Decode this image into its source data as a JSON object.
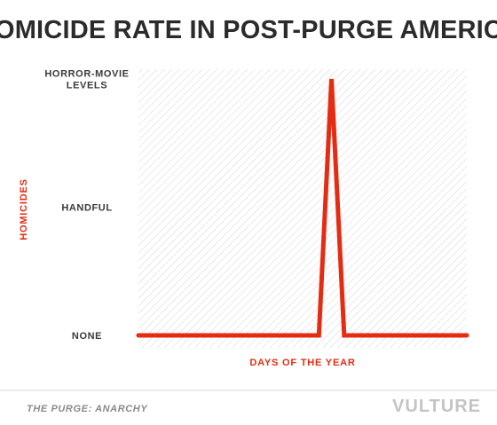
{
  "colors": {
    "title": "#2b2b2b",
    "accent": "#e52b12",
    "tick_text": "#3a3a3a",
    "hatch": "#d6d6d6",
    "footer_text": "#8a8a8a",
    "logo": "#c4c4c4",
    "footer_rule": "#d9d9d9"
  },
  "chart_data": {
    "type": "line",
    "title": "HOMICIDE RATE IN POST-PURGE AMERICA",
    "xlabel": "DAYS OF THE YEAR",
    "ylabel": "HOMICIDES",
    "yticks": [
      {
        "value": 0,
        "lines": [
          "NONE"
        ]
      },
      {
        "value": 1,
        "lines": [
          "HANDFUL"
        ]
      },
      {
        "value": 2,
        "lines": [
          "HORROR-MOVIE",
          "LEVELS"
        ]
      }
    ],
    "ylim": [
      0,
      2
    ],
    "xlim": [
      1,
      365
    ],
    "grid": false,
    "series": [
      {
        "x": [
          1,
          201,
          215,
          229,
          365
        ],
        "y": [
          0,
          0,
          2,
          0,
          0
        ]
      }
    ]
  },
  "footer": {
    "source": "THE PURGE: ANARCHY",
    "logo": "VULTURE"
  }
}
